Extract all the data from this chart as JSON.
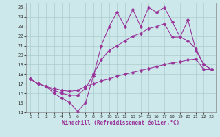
{
  "xlabel": "Windchill (Refroidissement éolien,°C)",
  "background_color": "#cce8ea",
  "grid_color": "#aacccc",
  "line_color": "#993399",
  "xlim": [
    -0.5,
    23.5
  ],
  "ylim": [
    14,
    25.5
  ],
  "xticks": [
    0,
    1,
    2,
    3,
    4,
    5,
    6,
    7,
    8,
    9,
    10,
    11,
    12,
    13,
    14,
    15,
    16,
    17,
    18,
    19,
    20,
    21,
    22,
    23
  ],
  "yticks": [
    14,
    15,
    16,
    17,
    18,
    19,
    20,
    21,
    22,
    23,
    24,
    25
  ],
  "line1_x": [
    0,
    1,
    2,
    3,
    4,
    5,
    6,
    7,
    8,
    9,
    10,
    11,
    12,
    13,
    14,
    15,
    16,
    17,
    18,
    19,
    20,
    21,
    22,
    23
  ],
  "line1_y": [
    17.5,
    17.0,
    16.7,
    16.0,
    15.5,
    15.0,
    14.1,
    15.0,
    17.8,
    21.0,
    23.0,
    24.5,
    23.0,
    24.8,
    23.0,
    25.0,
    24.5,
    25.0,
    23.5,
    21.9,
    23.7,
    20.5,
    19.0,
    18.5
  ],
  "line2_x": [
    0,
    1,
    2,
    3,
    4,
    5,
    6,
    7,
    8,
    9,
    10,
    11,
    12,
    13,
    14,
    15,
    16,
    17,
    18,
    19,
    20,
    21,
    22,
    23
  ],
  "line2_y": [
    17.5,
    17.0,
    16.7,
    16.3,
    16.0,
    15.8,
    15.8,
    16.5,
    18.0,
    19.5,
    20.5,
    21.0,
    21.5,
    22.0,
    22.3,
    22.8,
    23.0,
    23.3,
    21.9,
    21.9,
    21.5,
    20.7,
    19.0,
    18.5
  ],
  "line3_x": [
    0,
    1,
    2,
    3,
    4,
    5,
    6,
    7,
    8,
    9,
    10,
    11,
    12,
    13,
    14,
    15,
    16,
    17,
    18,
    19,
    20,
    21,
    22,
    23
  ],
  "line3_y": [
    17.5,
    17.0,
    16.7,
    16.5,
    16.3,
    16.2,
    16.3,
    16.7,
    17.0,
    17.3,
    17.5,
    17.8,
    18.0,
    18.2,
    18.4,
    18.6,
    18.8,
    19.0,
    19.2,
    19.3,
    19.5,
    19.6,
    18.5,
    18.5
  ]
}
